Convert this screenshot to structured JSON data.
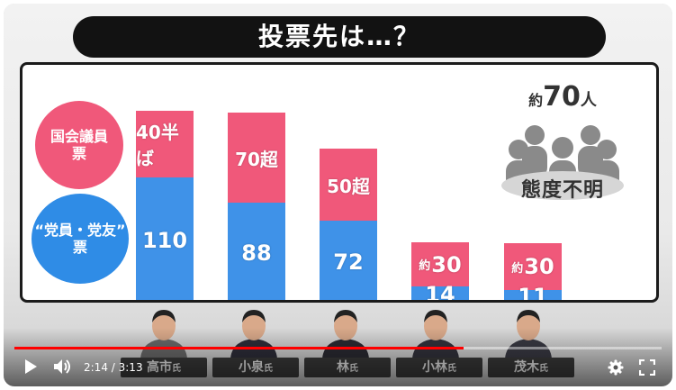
{
  "title": "投票先は…？",
  "legend": {
    "diet_votes_line1": "国会議員",
    "diet_votes_line2": "票",
    "party_votes_line1": "“党員・党友”",
    "party_votes_line2": "票"
  },
  "colors": {
    "diet": "#f0587a",
    "party": "#3f92e8",
    "progress": "#ff0000",
    "title_bg": "#121212"
  },
  "chart_data": {
    "type": "bar",
    "categories": [
      "高市氏",
      "小泉氏",
      "林氏",
      "小林氏",
      "茂木氏"
    ],
    "series": [
      {
        "name": "“党員・党友”票",
        "values": [
          110,
          88,
          72,
          14,
          11
        ],
        "labels": [
          "110",
          "88",
          "72",
          "14",
          "11"
        ]
      },
      {
        "name": "国会議員票",
        "values": [
          45,
          70,
          50,
          30,
          30
        ],
        "labels": [
          "40半ば",
          "70超",
          "50超",
          "約30",
          "約30"
        ]
      }
    ]
  },
  "undecided": {
    "prefix": "約",
    "count": "70",
    "suffix": "人",
    "label": "態度不明"
  },
  "candidates": [
    {
      "name": "高市",
      "honorific": "氏"
    },
    {
      "name": "小泉",
      "honorific": "氏"
    },
    {
      "name": "林",
      "honorific": "氏"
    },
    {
      "name": "小林",
      "honorific": "氏"
    },
    {
      "name": "茂木",
      "honorific": "氏"
    }
  ],
  "player": {
    "current_time": "2:14",
    "separator": " / ",
    "duration": "3:13",
    "progress_fraction": 0.694,
    "icons": [
      "play-icon",
      "volume-icon",
      "settings-gear-icon",
      "fullscreen-icon"
    ]
  }
}
